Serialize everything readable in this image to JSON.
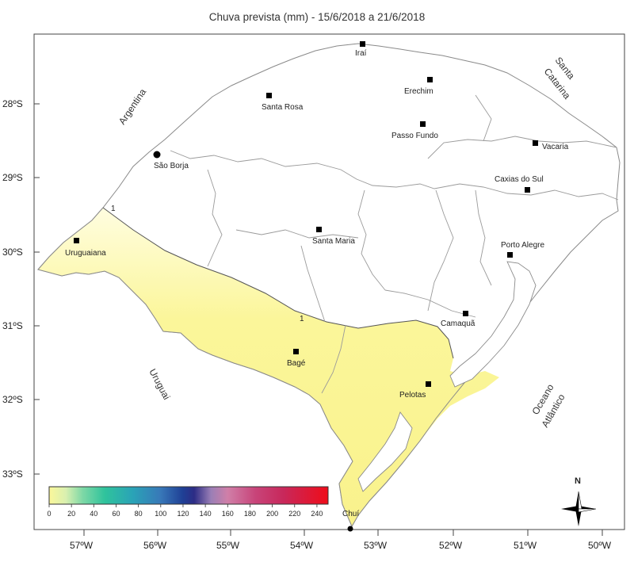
{
  "title": "Chuva prevista (mm) - 15/6/2018 a 21/6/2018",
  "cities": [
    {
      "name": "Iraí"
    },
    {
      "name": "Erechim"
    },
    {
      "name": "Santa Rosa"
    },
    {
      "name": "Passo Fundo"
    },
    {
      "name": "Vacaria"
    },
    {
      "name": "São Borja"
    },
    {
      "name": "Caxias do Sul"
    },
    {
      "name": "Santa Maria"
    },
    {
      "name": "Uruguaiana"
    },
    {
      "name": "Porto Alegre"
    },
    {
      "name": "Camaquã"
    },
    {
      "name": "Bagé"
    },
    {
      "name": "Pelotas"
    },
    {
      "name": "Chuí"
    }
  ],
  "regions": {
    "argentina": "Argentina",
    "santa_catarina_line1": "Santa",
    "santa_catarina_line2": "Catarina",
    "uruguai": "Uruguai",
    "oceano_line1": "Oceano",
    "oceano_line2": "Atlântico"
  },
  "latitude_ticks": [
    "28ºS",
    "29ºS",
    "30ºS",
    "31ºS",
    "32ºS",
    "33ºS"
  ],
  "longitude_ticks": [
    "57ºW",
    "56ºW",
    "55ºW",
    "54ºW",
    "53ºW",
    "52ºW",
    "51ºW",
    "50ºW"
  ],
  "contour_labels": [
    "1",
    "1"
  ],
  "colorbar": {
    "ticks": [
      "0",
      "20",
      "40",
      "60",
      "80",
      "100",
      "120",
      "140",
      "160",
      "180",
      "200",
      "220",
      "240"
    ],
    "min": 0,
    "max": 250
  },
  "north_label": "N",
  "colors": {
    "rain_fill": "#fbf69a",
    "rain_fill_light": "#fefcd8",
    "border": "#888888",
    "state_border": "#9a9a9a"
  }
}
